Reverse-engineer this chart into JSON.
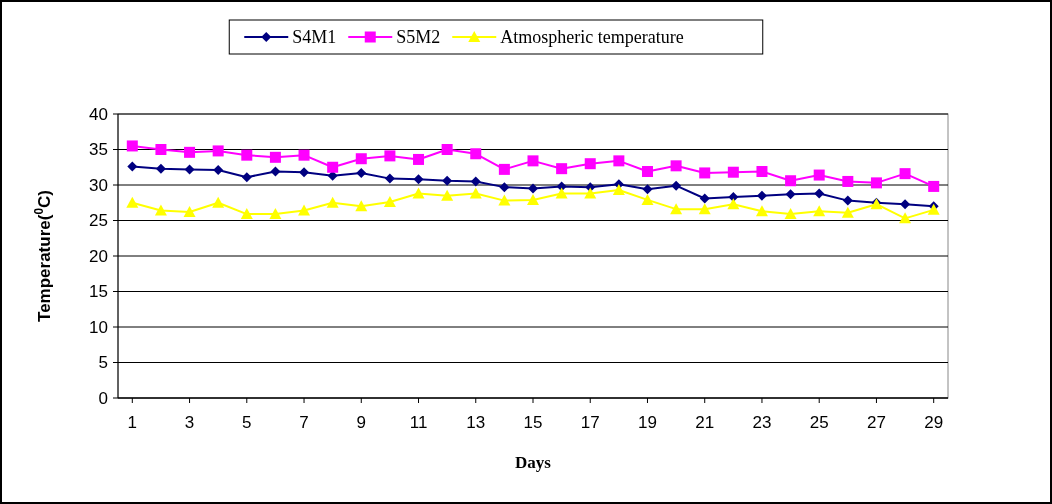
{
  "chart_data": {
    "type": "line",
    "xlabel": "Days",
    "ylabel": "Temperature($^{0}$C)",
    "x": [
      1,
      2,
      3,
      4,
      5,
      6,
      7,
      8,
      9,
      10,
      11,
      12,
      13,
      14,
      15,
      16,
      17,
      18,
      19,
      20,
      21,
      22,
      23,
      24,
      25,
      26,
      27,
      28,
      29
    ],
    "xlim": [
      0.5,
      29.5
    ],
    "xticks": [
      1,
      3,
      5,
      7,
      9,
      11,
      13,
      15,
      17,
      19,
      21,
      23,
      25,
      27,
      29
    ],
    "ylim": [
      0,
      40
    ],
    "yticks": [
      0,
      5,
      10,
      15,
      20,
      25,
      30,
      35,
      40
    ],
    "grid": "y",
    "legend": "top",
    "series": [
      {
        "name": "S4M1",
        "color": "#000080",
        "marker": "diamond",
        "values": [
          32.6,
          32.3,
          32.2,
          32.1,
          31.1,
          31.9,
          31.8,
          31.3,
          31.7,
          30.9,
          30.8,
          30.6,
          30.5,
          29.7,
          29.5,
          29.8,
          29.7,
          30.1,
          29.4,
          29.9,
          28.1,
          28.3,
          28.5,
          28.7,
          28.8,
          27.8,
          27.5,
          27.3,
          27.0
        ]
      },
      {
        "name": "S5M2",
        "color": "#ff00ff",
        "marker": "square",
        "values": [
          35.5,
          35.0,
          34.6,
          34.8,
          34.2,
          33.9,
          34.2,
          32.5,
          33.7,
          34.1,
          33.6,
          35.0,
          34.4,
          32.2,
          33.4,
          32.3,
          33.0,
          33.4,
          31.9,
          32.7,
          31.7,
          31.8,
          31.9,
          30.6,
          31.4,
          30.5,
          30.3,
          31.6,
          29.8
        ]
      },
      {
        "name": "Atmospheric temperature",
        "color": "#ffff00",
        "marker": "triangle",
        "values": [
          27.5,
          26.4,
          26.2,
          27.5,
          25.9,
          25.9,
          26.4,
          27.5,
          27.0,
          27.6,
          28.8,
          28.5,
          28.8,
          27.8,
          27.9,
          28.8,
          28.8,
          29.3,
          27.9,
          26.6,
          26.6,
          27.3,
          26.3,
          25.9,
          26.3,
          26.1,
          27.3,
          25.3,
          26.5
        ]
      }
    ]
  }
}
